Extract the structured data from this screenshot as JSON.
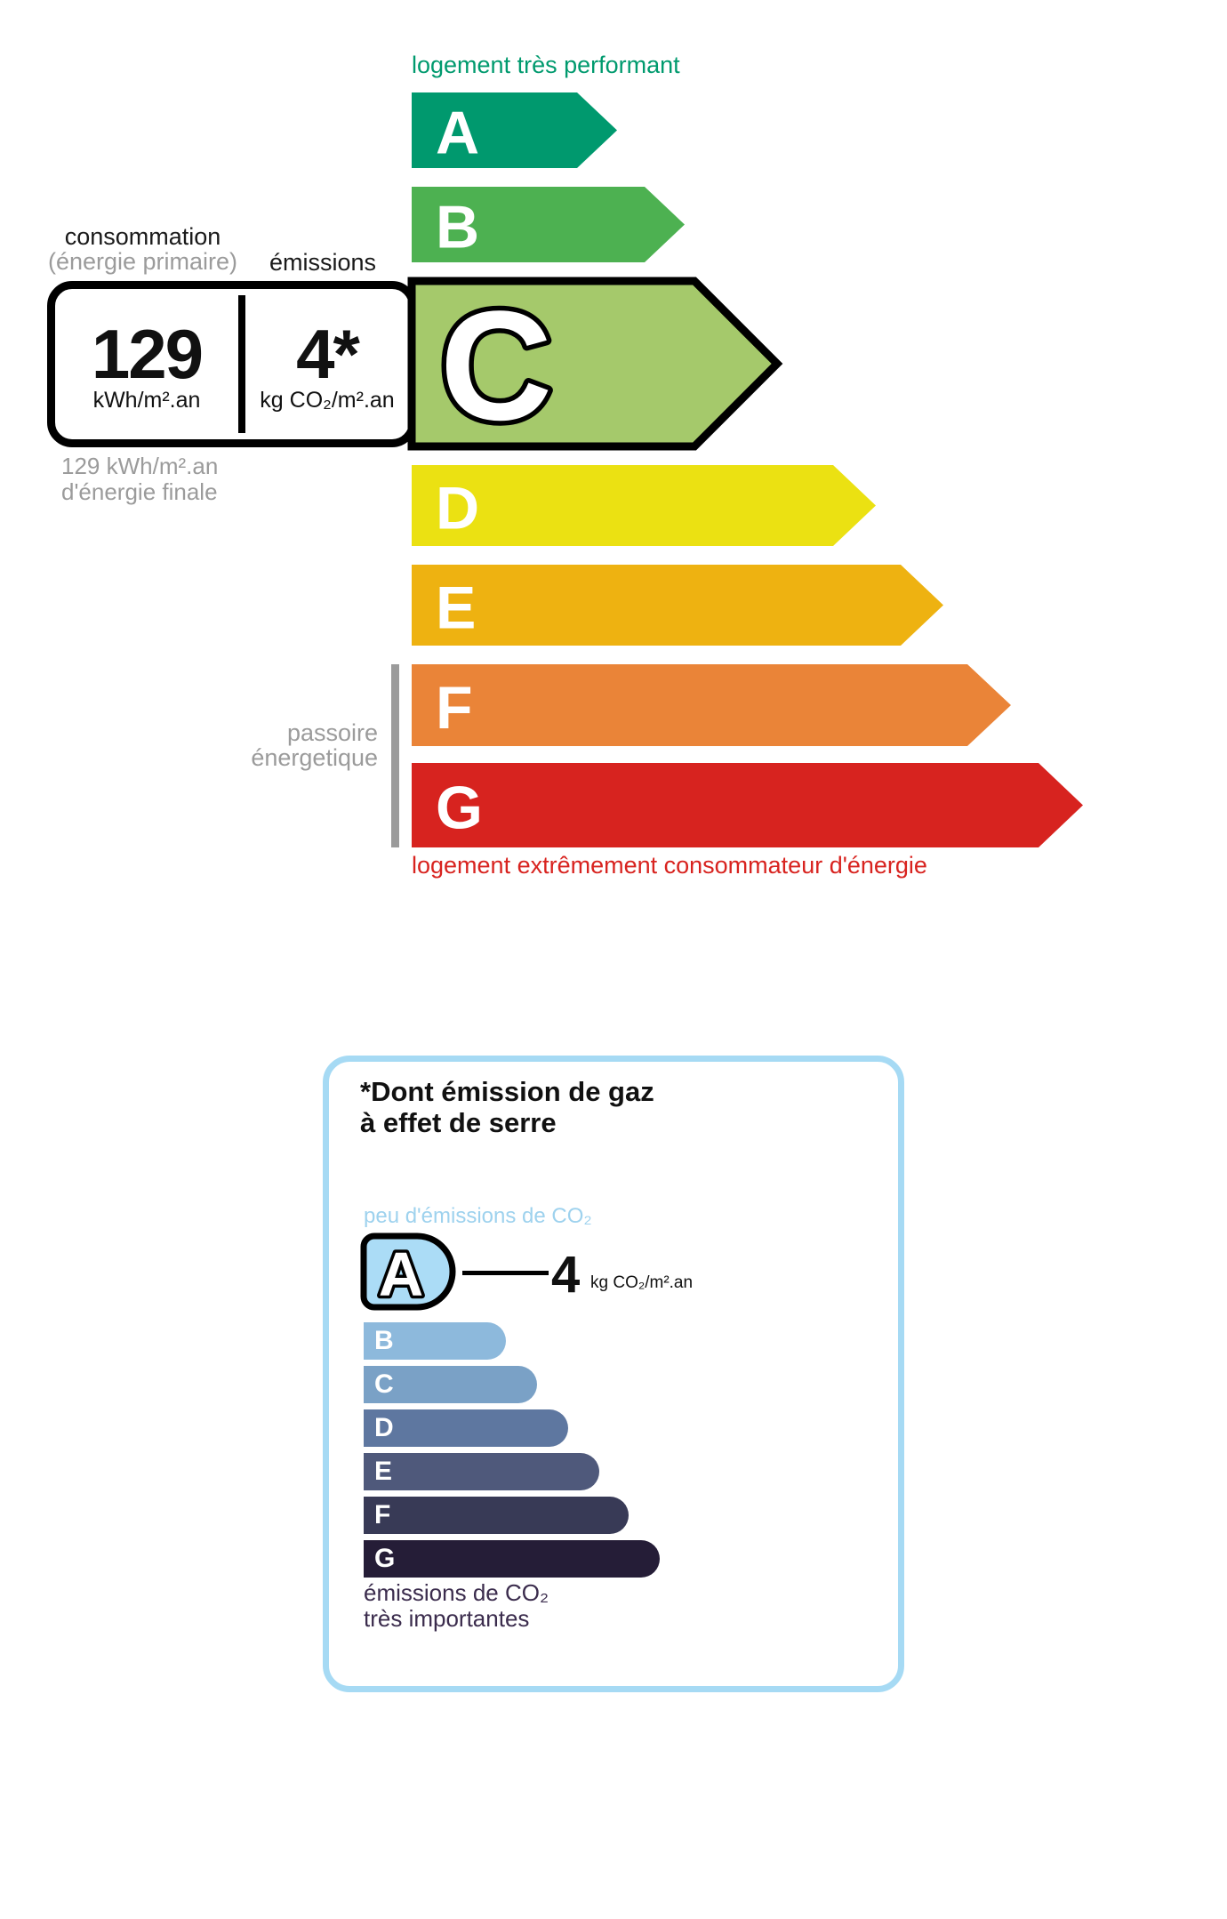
{
  "energy": {
    "top_label": "logement très performant",
    "bottom_label": "logement extrêmement consommateur d'énergie",
    "sieve_label_line1": "passoire",
    "sieve_label_line2": "énergetique",
    "header": {
      "consumption": "consommation",
      "consumption_sub": "(énergie primaire)",
      "emissions": "émissions"
    },
    "values": {
      "energy_value": "129",
      "energy_unit": "kWh/m².an",
      "co2_value": "4*",
      "co2_unit": "kg CO₂/m².an"
    },
    "final_note_line1": "129 kWh/m².an",
    "final_note_line2": "d'énergie finale"
  },
  "co2": {
    "title_line1": "*Dont émission de gaz",
    "title_line2": "à effet de serre",
    "top_label": "peu d'émissions de CO₂",
    "value": "4",
    "unit": "kg CO₂/m².an",
    "bottom_label_line1": "émissions de CO₂",
    "bottom_label_line2": "très importantes"
  },
  "chart_data": [
    {
      "type": "bar",
      "title": "Échelle DPE — consommation d'énergie",
      "categories": [
        "A",
        "B",
        "C",
        "D",
        "E",
        "F",
        "G"
      ],
      "values": [
        231,
        307,
        411,
        522,
        598,
        674,
        755
      ],
      "values_note": "relative arrow lengths in px (ordinal class scale)",
      "colors": [
        "#00996e",
        "#4db151",
        "#a5c96b",
        "#ebe112",
        "#eeb211",
        "#ea8438",
        "#d7231f"
      ],
      "active_category": "C",
      "active_values": {
        "energy": "129 kWh/m².an",
        "co2": "4* kg CO₂/m².an"
      },
      "legend_top": "logement très performant",
      "legend_bottom": "logement extrêmement consommateur d'énergie"
    },
    {
      "type": "bar",
      "title": "*Dont émission de gaz à effet de serre",
      "categories": [
        "A",
        "B",
        "C",
        "D",
        "E",
        "F",
        "G"
      ],
      "values": [
        106,
        160,
        195,
        230,
        265,
        298,
        333
      ],
      "values_note": "relative bar lengths in px (ordinal class scale)",
      "colors": [
        "#abdcf6",
        "#8db9dc",
        "#7aa1c6",
        "#5e77a0",
        "#4f597b",
        "#383a56",
        "#251d37"
      ],
      "active_category": "A",
      "active_values": {
        "co2": "4 kg CO₂/m².an"
      },
      "legend_top": "peu d'émissions de CO₂",
      "legend_bottom": "émissions de CO₂ très importantes"
    }
  ]
}
